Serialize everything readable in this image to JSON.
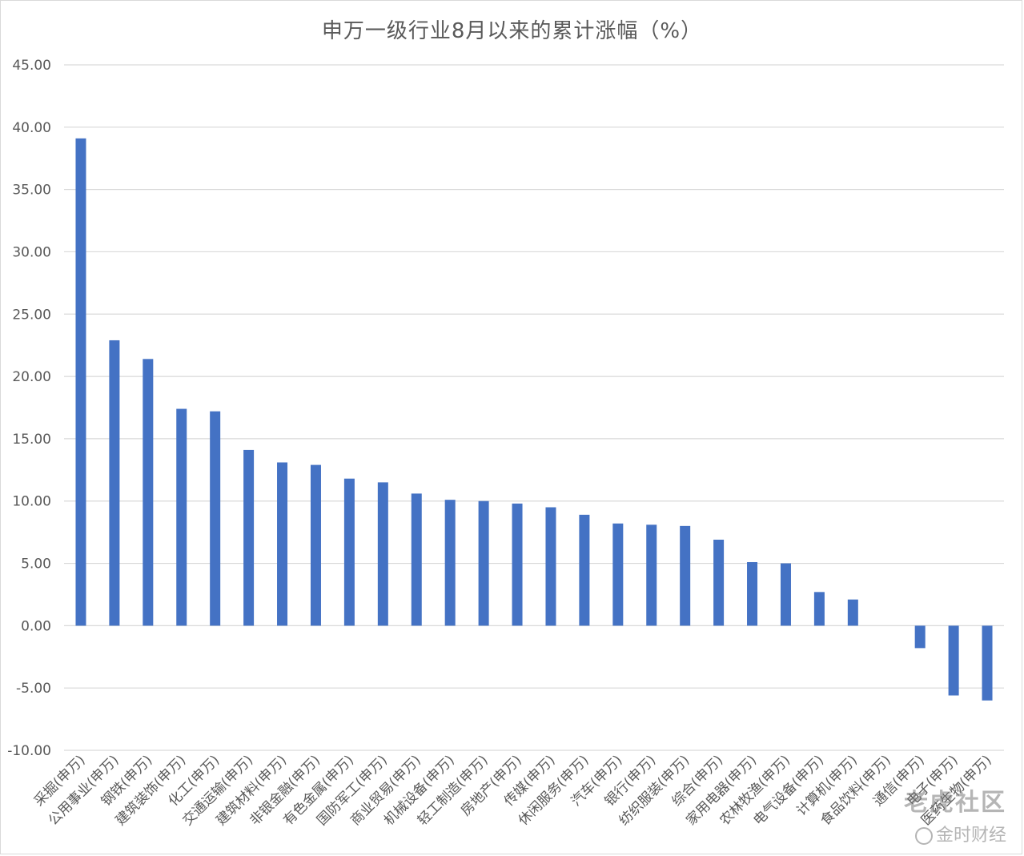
{
  "chart_data": {
    "type": "bar",
    "title": "申万一级行业8月以来的累计涨幅（%）",
    "xlabel": "",
    "ylabel": "",
    "ylim": [
      -10,
      45
    ],
    "yticks": [
      45,
      40,
      35,
      30,
      25,
      20,
      15,
      10,
      5,
      0,
      -5,
      -10
    ],
    "ytick_labels": [
      "45.00",
      "40.00",
      "35.00",
      "30.00",
      "25.00",
      "20.00",
      "15.00",
      "10.00",
      "5.00",
      "0.00",
      "-5.00",
      "-10.00"
    ],
    "grid": true,
    "legend": "none",
    "bar_color": "#4472C4",
    "categories": [
      "采掘(申万)",
      "公用事业(申万)",
      "钢铁(申万)",
      "建筑装饰(申万)",
      "化工(申万)",
      "交通运输(申万)",
      "建筑材料(申万)",
      "非银金融(申万)",
      "有色金属(申万)",
      "国防军工(申万)",
      "商业贸易(申万)",
      "机械设备(申万)",
      "轻工制造(申万)",
      "房地产(申万)",
      "传媒(申万)",
      "休闲服务(申万)",
      "汽车(申万)",
      "银行(申万)",
      "纺织服装(申万)",
      "综合(申万)",
      "家用电器(申万)",
      "农林牧渔(申万)",
      "电气设备(申万)",
      "计算机(申万)",
      "食品饮料(申万)",
      "通信(申万)",
      "电子(申万)",
      "医药生物(申万)"
    ],
    "values": [
      39.1,
      22.9,
      21.4,
      17.4,
      17.2,
      14.1,
      13.1,
      12.9,
      11.8,
      11.5,
      10.6,
      10.1,
      10.0,
      9.8,
      9.5,
      8.9,
      8.2,
      8.1,
      8.0,
      6.9,
      5.1,
      5.0,
      2.7,
      2.1,
      0.0,
      -1.8,
      -5.6,
      -6.0
    ]
  },
  "watermark": {
    "line1": "老虎社区",
    "line2": "金时财经"
  }
}
